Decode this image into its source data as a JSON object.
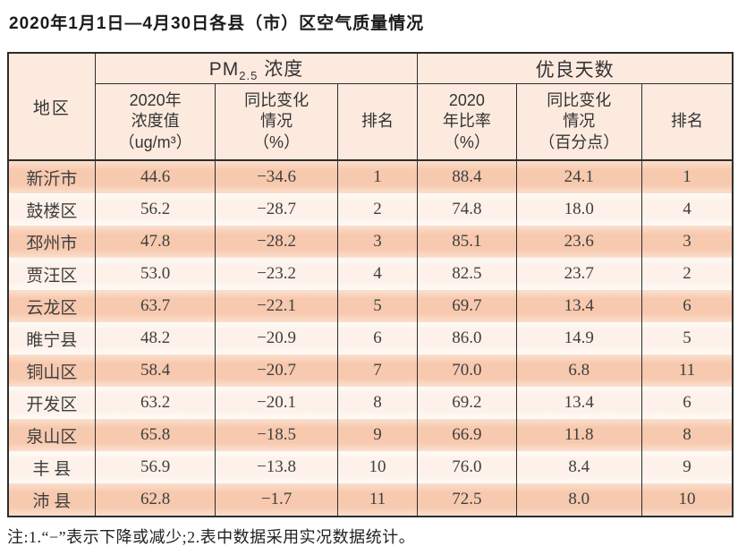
{
  "page": {
    "title": "2020年1月1日—4月30日各县（市）区空气质量情况",
    "note": "注:1.“−”表示下降或减少;2.表中数据采用实况数据统计。"
  },
  "colors": {
    "header_bg": "#fceade",
    "row_odd": "#f7c9ae",
    "row_even": "#fdf1e9",
    "border": "#2d2d2d",
    "text": "#3a3a3a"
  },
  "table": {
    "corner_header": "地区",
    "group_pm": {
      "prefix": "PM",
      "sub": "2.5",
      "suffix": " 浓度"
    },
    "group_good_days": "优良天数",
    "subheaders": [
      "2020年\n浓度值\n（ug/m³）",
      "同比变化\n情况\n（%）",
      "排名",
      "2020\n年比率\n（%）",
      "同比变化\n情况\n（百分点）",
      "排名"
    ],
    "rows": [
      {
        "region": "新沂市",
        "values": [
          "44.6",
          "−34.6",
          "1",
          "88.4",
          "24.1",
          "1"
        ]
      },
      {
        "region": "鼓楼区",
        "values": [
          "56.2",
          "−28.7",
          "2",
          "74.8",
          "18.0",
          "4"
        ]
      },
      {
        "region": "邳州市",
        "values": [
          "47.8",
          "−28.2",
          "3",
          "85.1",
          "23.6",
          "3"
        ]
      },
      {
        "region": "贾汪区",
        "values": [
          "53.0",
          "−23.2",
          "4",
          "82.5",
          "23.7",
          "2"
        ]
      },
      {
        "region": "云龙区",
        "values": [
          "63.7",
          "−22.1",
          "5",
          "69.7",
          "13.4",
          "6"
        ]
      },
      {
        "region": "睢宁县",
        "values": [
          "48.2",
          "−20.9",
          "6",
          "86.0",
          "14.9",
          "5"
        ]
      },
      {
        "region": "铜山区",
        "values": [
          "58.4",
          "−20.7",
          "7",
          "70.0",
          "6.8",
          "11"
        ]
      },
      {
        "region": "开发区",
        "values": [
          "63.2",
          "−20.1",
          "8",
          "69.2",
          "13.4",
          "6"
        ]
      },
      {
        "region": "泉山区",
        "values": [
          "65.8",
          "−18.5",
          "9",
          "66.9",
          "11.8",
          "8"
        ]
      },
      {
        "region": "丰 县",
        "values": [
          "56.9",
          "−13.8",
          "10",
          "76.0",
          "8.4",
          "9"
        ]
      },
      {
        "region": "沛 县",
        "values": [
          "62.8",
          "−1.7",
          "11",
          "72.5",
          "8.0",
          "10"
        ]
      }
    ]
  }
}
